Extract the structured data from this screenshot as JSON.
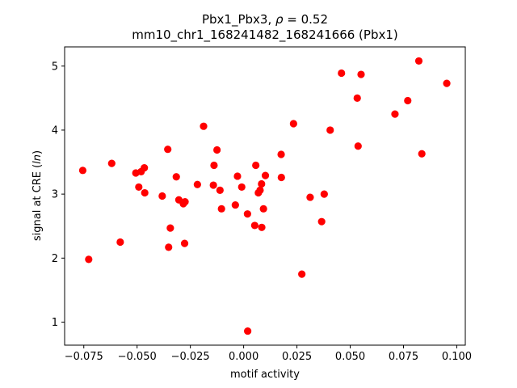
{
  "chart_data": {
    "type": "scatter",
    "title_line1": "Pbx1_Pbx3, ",
    "title_rho_symbol": "ρ",
    "title_rho_value": " = 0.52",
    "title_line2": "mm10_chr1_168241482_168241666 (Pbx1)",
    "xlabel": "motif activity",
    "ylabel_prefix": "signal at CRE (",
    "ylabel_italic": "ln",
    "ylabel_suffix": ")",
    "xlim": [
      -0.084,
      0.104
    ],
    "ylim": [
      0.64,
      5.3
    ],
    "x_ticks": [
      -0.075,
      -0.05,
      -0.025,
      0.0,
      0.025,
      0.05,
      0.075,
      0.1
    ],
    "x_tick_labels": [
      "−0.075",
      "−0.050",
      "−0.025",
      "0.000",
      "0.025",
      "0.050",
      "0.075",
      "0.100"
    ],
    "y_ticks": [
      1,
      2,
      3,
      4,
      5
    ],
    "y_tick_labels": [
      "1",
      "2",
      "3",
      "4",
      "5"
    ],
    "grid": false,
    "marker_color": "#ff0000",
    "points": [
      {
        "x": -0.0755,
        "y": 3.37
      },
      {
        "x": -0.0727,
        "y": 1.98
      },
      {
        "x": -0.0619,
        "y": 3.48
      },
      {
        "x": -0.0579,
        "y": 2.25
      },
      {
        "x": -0.0506,
        "y": 3.33
      },
      {
        "x": -0.0492,
        "y": 3.11
      },
      {
        "x": -0.0481,
        "y": 3.35
      },
      {
        "x": -0.0466,
        "y": 3.41
      },
      {
        "x": -0.0464,
        "y": 3.02
      },
      {
        "x": -0.0382,
        "y": 2.97
      },
      {
        "x": -0.0356,
        "y": 3.7
      },
      {
        "x": -0.0352,
        "y": 2.17
      },
      {
        "x": -0.0344,
        "y": 2.47
      },
      {
        "x": -0.0316,
        "y": 3.27
      },
      {
        "x": -0.0304,
        "y": 2.91
      },
      {
        "x": -0.0283,
        "y": 2.85
      },
      {
        "x": -0.0277,
        "y": 2.23
      },
      {
        "x": -0.0275,
        "y": 2.88
      },
      {
        "x": -0.0217,
        "y": 3.15
      },
      {
        "x": -0.0188,
        "y": 4.06
      },
      {
        "x": -0.0142,
        "y": 3.14
      },
      {
        "x": -0.0139,
        "y": 3.45
      },
      {
        "x": -0.0125,
        "y": 3.69
      },
      {
        "x": -0.0111,
        "y": 3.06
      },
      {
        "x": -0.0104,
        "y": 2.77
      },
      {
        "x": -0.0039,
        "y": 2.83
      },
      {
        "x": -0.0029,
        "y": 3.28
      },
      {
        "x": -0.0009,
        "y": 3.11
      },
      {
        "x": 0.0018,
        "y": 2.69
      },
      {
        "x": 0.0019,
        "y": 0.86
      },
      {
        "x": 0.0052,
        "y": 2.51
      },
      {
        "x": 0.0057,
        "y": 3.45
      },
      {
        "x": 0.0069,
        "y": 3.02
      },
      {
        "x": 0.0077,
        "y": 3.06
      },
      {
        "x": 0.0084,
        "y": 3.16
      },
      {
        "x": 0.0085,
        "y": 2.48
      },
      {
        "x": 0.0093,
        "y": 2.77
      },
      {
        "x": 0.0102,
        "y": 3.29
      },
      {
        "x": 0.0176,
        "y": 3.62
      },
      {
        "x": 0.0177,
        "y": 3.26
      },
      {
        "x": 0.0234,
        "y": 4.1
      },
      {
        "x": 0.0273,
        "y": 1.75
      },
      {
        "x": 0.0312,
        "y": 2.95
      },
      {
        "x": 0.0366,
        "y": 2.57
      },
      {
        "x": 0.0378,
        "y": 3.0
      },
      {
        "x": 0.0406,
        "y": 4.0
      },
      {
        "x": 0.0459,
        "y": 4.89
      },
      {
        "x": 0.0533,
        "y": 4.5
      },
      {
        "x": 0.0537,
        "y": 3.75
      },
      {
        "x": 0.0551,
        "y": 4.87
      },
      {
        "x": 0.071,
        "y": 4.25
      },
      {
        "x": 0.077,
        "y": 4.46
      },
      {
        "x": 0.0822,
        "y": 5.08
      },
      {
        "x": 0.0836,
        "y": 3.63
      },
      {
        "x": 0.0953,
        "y": 4.73
      }
    ]
  }
}
